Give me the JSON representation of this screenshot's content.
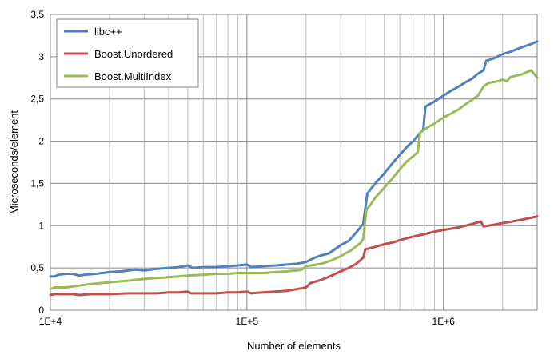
{
  "chart_data": {
    "type": "line",
    "title": "",
    "xlabel": "Number of elements",
    "ylabel": "Microseconds/element",
    "x_scale": "log",
    "xlim": [
      10000,
      3000000
    ],
    "ylim": [
      0,
      3.5
    ],
    "x_ticks": [
      10000,
      100000,
      1000000
    ],
    "x_tick_labels": [
      "1E+4",
      "1E+5",
      "1E+6"
    ],
    "y_ticks": [
      0,
      0.5,
      1,
      1.5,
      2,
      2.5,
      3,
      3.5
    ],
    "y_tick_labels": [
      "0",
      "0,5",
      "1",
      "1,5",
      "2",
      "2,5",
      "3",
      "3,5"
    ],
    "grid": true,
    "legend_position": "top-left",
    "series": [
      {
        "name": "libc++",
        "color": "#4F81BD",
        "points": [
          [
            10000,
            0.4
          ],
          [
            10500,
            0.4
          ],
          [
            11000,
            0.42
          ],
          [
            12000,
            0.43
          ],
          [
            13000,
            0.43
          ],
          [
            14000,
            0.41
          ],
          [
            15000,
            0.42
          ],
          [
            17000,
            0.43
          ],
          [
            20000,
            0.45
          ],
          [
            23000,
            0.46
          ],
          [
            27000,
            0.48
          ],
          [
            30000,
            0.47
          ],
          [
            35000,
            0.49
          ],
          [
            40000,
            0.5
          ],
          [
            45000,
            0.51
          ],
          [
            50000,
            0.53
          ],
          [
            53000,
            0.5
          ],
          [
            60000,
            0.51
          ],
          [
            70000,
            0.51
          ],
          [
            80000,
            0.52
          ],
          [
            90000,
            0.53
          ],
          [
            100000,
            0.54
          ],
          [
            105000,
            0.51
          ],
          [
            120000,
            0.52
          ],
          [
            140000,
            0.53
          ],
          [
            160000,
            0.54
          ],
          [
            180000,
            0.55
          ],
          [
            200000,
            0.57
          ],
          [
            220000,
            0.62
          ],
          [
            240000,
            0.65
          ],
          [
            260000,
            0.67
          ],
          [
            280000,
            0.72
          ],
          [
            300000,
            0.77
          ],
          [
            330000,
            0.82
          ],
          [
            360000,
            0.92
          ],
          [
            390000,
            1.02
          ],
          [
            410000,
            1.38
          ],
          [
            450000,
            1.5
          ],
          [
            500000,
            1.62
          ],
          [
            550000,
            1.74
          ],
          [
            600000,
            1.84
          ],
          [
            650000,
            1.93
          ],
          [
            700000,
            2.0
          ],
          [
            750000,
            2.08
          ],
          [
            790000,
            2.14
          ],
          [
            810000,
            2.41
          ],
          [
            900000,
            2.47
          ],
          [
            1000000,
            2.54
          ],
          [
            1100000,
            2.6
          ],
          [
            1200000,
            2.65
          ],
          [
            1300000,
            2.7
          ],
          [
            1400000,
            2.74
          ],
          [
            1500000,
            2.8
          ],
          [
            1600000,
            2.84
          ],
          [
            1650000,
            2.95
          ],
          [
            1800000,
            2.98
          ],
          [
            2000000,
            3.03
          ],
          [
            2200000,
            3.06
          ],
          [
            2500000,
            3.11
          ],
          [
            2800000,
            3.15
          ],
          [
            3000000,
            3.18
          ]
        ]
      },
      {
        "name": "Boost.Unordered",
        "color": "#C0504D",
        "points": [
          [
            10000,
            0.18
          ],
          [
            10500,
            0.19
          ],
          [
            12000,
            0.19
          ],
          [
            13000,
            0.19
          ],
          [
            14000,
            0.18
          ],
          [
            16000,
            0.19
          ],
          [
            20000,
            0.19
          ],
          [
            25000,
            0.2
          ],
          [
            30000,
            0.2
          ],
          [
            35000,
            0.2
          ],
          [
            40000,
            0.21
          ],
          [
            45000,
            0.21
          ],
          [
            50000,
            0.22
          ],
          [
            52000,
            0.2
          ],
          [
            60000,
            0.2
          ],
          [
            70000,
            0.2
          ],
          [
            80000,
            0.21
          ],
          [
            90000,
            0.21
          ],
          [
            100000,
            0.22
          ],
          [
            105000,
            0.2
          ],
          [
            120000,
            0.21
          ],
          [
            140000,
            0.22
          ],
          [
            160000,
            0.23
          ],
          [
            180000,
            0.25
          ],
          [
            200000,
            0.27
          ],
          [
            210000,
            0.32
          ],
          [
            240000,
            0.36
          ],
          [
            270000,
            0.41
          ],
          [
            300000,
            0.46
          ],
          [
            330000,
            0.5
          ],
          [
            360000,
            0.55
          ],
          [
            390000,
            0.62
          ],
          [
            400000,
            0.72
          ],
          [
            450000,
            0.75
          ],
          [
            500000,
            0.78
          ],
          [
            550000,
            0.8
          ],
          [
            600000,
            0.83
          ],
          [
            700000,
            0.87
          ],
          [
            800000,
            0.9
          ],
          [
            900000,
            0.93
          ],
          [
            1000000,
            0.95
          ],
          [
            1200000,
            0.98
          ],
          [
            1400000,
            1.02
          ],
          [
            1550000,
            1.05
          ],
          [
            1600000,
            0.99
          ],
          [
            1800000,
            1.01
          ],
          [
            2000000,
            1.03
          ],
          [
            2500000,
            1.07
          ],
          [
            3000000,
            1.11
          ]
        ]
      },
      {
        "name": "Boost.MultiIndex",
        "color": "#9BBB59",
        "points": [
          [
            10000,
            0.25
          ],
          [
            10500,
            0.27
          ],
          [
            12000,
            0.27
          ],
          [
            14000,
            0.29
          ],
          [
            16000,
            0.31
          ],
          [
            20000,
            0.33
          ],
          [
            25000,
            0.35
          ],
          [
            30000,
            0.37
          ],
          [
            35000,
            0.38
          ],
          [
            40000,
            0.39
          ],
          [
            45000,
            0.4
          ],
          [
            50000,
            0.41
          ],
          [
            60000,
            0.42
          ],
          [
            70000,
            0.43
          ],
          [
            80000,
            0.43
          ],
          [
            90000,
            0.44
          ],
          [
            100000,
            0.44
          ],
          [
            120000,
            0.44
          ],
          [
            140000,
            0.45
          ],
          [
            160000,
            0.46
          ],
          [
            180000,
            0.47
          ],
          [
            190000,
            0.48
          ],
          [
            200000,
            0.52
          ],
          [
            240000,
            0.55
          ],
          [
            270000,
            0.59
          ],
          [
            300000,
            0.64
          ],
          [
            340000,
            0.71
          ],
          [
            380000,
            0.8
          ],
          [
            390000,
            0.84
          ],
          [
            405000,
            1.18
          ],
          [
            450000,
            1.33
          ],
          [
            500000,
            1.45
          ],
          [
            550000,
            1.56
          ],
          [
            600000,
            1.67
          ],
          [
            650000,
            1.76
          ],
          [
            700000,
            1.82
          ],
          [
            740000,
            1.87
          ],
          [
            760000,
            2.1
          ],
          [
            800000,
            2.14
          ],
          [
            900000,
            2.21
          ],
          [
            1000000,
            2.28
          ],
          [
            1100000,
            2.33
          ],
          [
            1200000,
            2.38
          ],
          [
            1300000,
            2.44
          ],
          [
            1400000,
            2.49
          ],
          [
            1500000,
            2.54
          ],
          [
            1600000,
            2.65
          ],
          [
            1700000,
            2.69
          ],
          [
            1900000,
            2.71
          ],
          [
            2000000,
            2.73
          ],
          [
            2100000,
            2.71
          ],
          [
            2200000,
            2.76
          ],
          [
            2500000,
            2.79
          ],
          [
            2800000,
            2.84
          ],
          [
            3000000,
            2.75
          ]
        ]
      }
    ]
  }
}
